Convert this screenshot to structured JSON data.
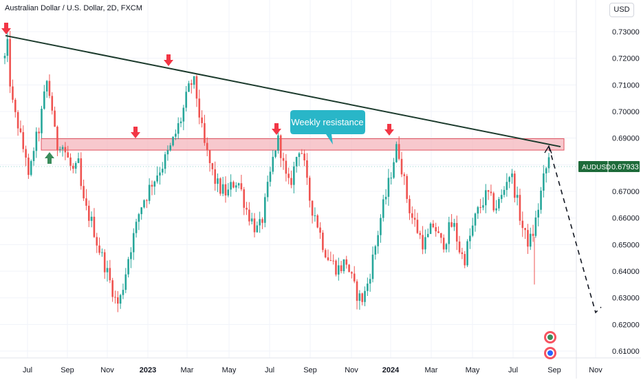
{
  "header": {
    "symbol_title": "Australian Dollar / U.S. Dollar, 2D, FXCM",
    "currency_button": "USD"
  },
  "price_tag": {
    "symbol": "AUDUSD",
    "price": "0.67933"
  },
  "annotation": {
    "label": "Weekly resistance"
  },
  "colors": {
    "up": "#26a69a",
    "down": "#ef5350",
    "trendline": "#1b3a2c",
    "zone_fill": "#f4b6bc",
    "zone_border": "#e0525e",
    "callout": "#29b6c8",
    "arrow_red": "#f23645",
    "arrow_green": "#3a8c5c",
    "tag_bg": "#1e6b3a"
  },
  "chart_data": {
    "type": "candlestick",
    "title": "Australian Dollar / U.S. Dollar, 2D, FXCM",
    "ylim": [
      0.6045,
      0.7375
    ],
    "y_ticks": [
      "0.73000",
      "0.72000",
      "0.71000",
      "0.70000",
      "0.69000",
      "0.68000",
      "0.67000",
      "0.66000",
      "0.65000",
      "0.64000",
      "0.63000",
      "0.62000",
      "0.61000"
    ],
    "x_ticks": [
      "Jul",
      "Sep",
      "Nov",
      "2023",
      "Mar",
      "May",
      "Jul",
      "Sep",
      "Nov",
      "2024",
      "Mar",
      "May",
      "Jul",
      "Sep",
      "Nov"
    ],
    "x_ticks_bold": [
      "2023",
      "2024"
    ],
    "grid": true,
    "last_price": 0.67933,
    "resistance_zone": [
      0.6855,
      0.6898
    ],
    "trendline": {
      "from": [
        "Jun 2022",
        0.7285
      ],
      "to": [
        "Aug 2024",
        0.6868
      ]
    },
    "projection": [
      [
        "Aug 2024",
        0.6868
      ],
      [
        "Oct 2024",
        0.6245
      ],
      [
        "Oct 2024",
        0.6265
      ]
    ],
    "price_path": [
      [
        0,
        0.72
      ],
      [
        2,
        0.728
      ],
      [
        5,
        0.713
      ],
      [
        9,
        0.7
      ],
      [
        14,
        0.695
      ],
      [
        18,
        0.687
      ],
      [
        22,
        0.684
      ],
      [
        25,
        0.673
      ],
      [
        30,
        0.686
      ],
      [
        35,
        0.692
      ],
      [
        38,
        0.698
      ],
      [
        41,
        0.705
      ],
      [
        44,
        0.711
      ],
      [
        47,
        0.706
      ],
      [
        50,
        0.7
      ],
      [
        52,
        0.692
      ],
      [
        55,
        0.687
      ],
      [
        58,
        0.689
      ],
      [
        62,
        0.686
      ],
      [
        66,
        0.682
      ],
      [
        70,
        0.678
      ],
      [
        73,
        0.677
      ],
      [
        77,
        0.68
      ],
      [
        81,
        0.667
      ],
      [
        85,
        0.663
      ],
      [
        89,
        0.66
      ],
      [
        93,
        0.656
      ],
      [
        97,
        0.65
      ],
      [
        101,
        0.646
      ],
      [
        105,
        0.642
      ],
      [
        109,
        0.637
      ],
      [
        113,
        0.633
      ],
      [
        117,
        0.627
      ],
      [
        121,
        0.63
      ],
      [
        125,
        0.637
      ],
      [
        129,
        0.645
      ],
      [
        133,
        0.651
      ],
      [
        137,
        0.656
      ],
      [
        141,
        0.663
      ],
      [
        145,
        0.667
      ],
      [
        149,
        0.669
      ],
      [
        153,
        0.673
      ],
      [
        157,
        0.675
      ],
      [
        161,
        0.678
      ],
      [
        165,
        0.68
      ],
      [
        169,
        0.683
      ],
      [
        173,
        0.686
      ],
      [
        177,
        0.69
      ],
      [
        181,
        0.694
      ],
      [
        185,
        0.698
      ],
      [
        189,
        0.704
      ],
      [
        193,
        0.709
      ],
      [
        197,
        0.712
      ],
      [
        201,
        0.705
      ],
      [
        205,
        0.695
      ],
      [
        209,
        0.687
      ],
      [
        213,
        0.682
      ],
      [
        217,
        0.677
      ],
      [
        221,
        0.673
      ],
      [
        225,
        0.671
      ],
      [
        229,
        0.67
      ],
      [
        233,
        0.669
      ],
      [
        237,
        0.672
      ],
      [
        241,
        0.674
      ],
      [
        245,
        0.673
      ],
      [
        249,
        0.668
      ],
      [
        253,
        0.663
      ],
      [
        257,
        0.66
      ],
      [
        261,
        0.657
      ],
      [
        265,
        0.655
      ],
      [
        269,
        0.659
      ],
      [
        273,
        0.667
      ],
      [
        277,
        0.675
      ],
      [
        281,
        0.683
      ],
      [
        285,
        0.69
      ],
      [
        289,
        0.685
      ],
      [
        293,
        0.676
      ],
      [
        297,
        0.672
      ],
      [
        301,
        0.676
      ],
      [
        305,
        0.683
      ],
      [
        309,
        0.688
      ],
      [
        313,
        0.68
      ],
      [
        317,
        0.67
      ],
      [
        321,
        0.664
      ],
      [
        325,
        0.661
      ],
      [
        329,
        0.655
      ],
      [
        333,
        0.65
      ],
      [
        337,
        0.646
      ],
      [
        341,
        0.644
      ],
      [
        345,
        0.642
      ],
      [
        349,
        0.641
      ],
      [
        353,
        0.642
      ],
      [
        357,
        0.644
      ],
      [
        361,
        0.639
      ],
      [
        365,
        0.634
      ],
      [
        369,
        0.631
      ],
      [
        373,
        0.629
      ],
      [
        377,
        0.632
      ],
      [
        381,
        0.638
      ],
      [
        385,
        0.645
      ],
      [
        389,
        0.652
      ],
      [
        393,
        0.66
      ],
      [
        397,
        0.666
      ],
      [
        401,
        0.672
      ],
      [
        405,
        0.679
      ],
      [
        409,
        0.686
      ],
      [
        413,
        0.684
      ],
      [
        417,
        0.675
      ],
      [
        421,
        0.667
      ],
      [
        425,
        0.661
      ],
      [
        429,
        0.658
      ],
      [
        433,
        0.654
      ],
      [
        437,
        0.651
      ],
      [
        441,
        0.651
      ],
      [
        445,
        0.655
      ],
      [
        449,
        0.658
      ],
      [
        453,
        0.653
      ],
      [
        457,
        0.65
      ],
      [
        461,
        0.652
      ],
      [
        465,
        0.656
      ],
      [
        469,
        0.658
      ],
      [
        473,
        0.652
      ],
      [
        477,
        0.646
      ],
      [
        481,
        0.645
      ],
      [
        485,
        0.651
      ],
      [
        489,
        0.656
      ],
      [
        493,
        0.661
      ],
      [
        497,
        0.664
      ],
      [
        501,
        0.667
      ],
      [
        505,
        0.669
      ],
      [
        509,
        0.666
      ],
      [
        513,
        0.664
      ],
      [
        517,
        0.666
      ],
      [
        521,
        0.669
      ],
      [
        525,
        0.675
      ],
      [
        529,
        0.677
      ],
      [
        533,
        0.671
      ],
      [
        537,
        0.664
      ],
      [
        541,
        0.657
      ],
      [
        545,
        0.652
      ],
      [
        549,
        0.651
      ],
      [
        553,
        0.655
      ],
      [
        557,
        0.662
      ],
      [
        561,
        0.67
      ],
      [
        565,
        0.677
      ],
      [
        569,
        0.682
      ]
    ]
  }
}
